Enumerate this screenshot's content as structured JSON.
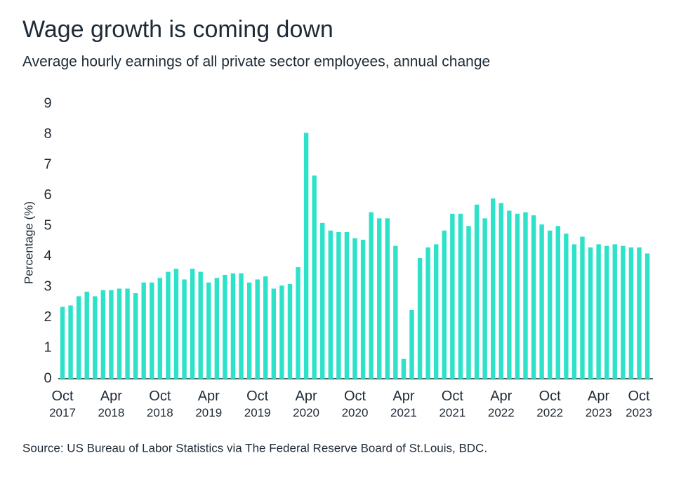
{
  "chart_data": {
    "type": "bar",
    "title": "Wage growth is coming down",
    "subtitle": "Average hourly earnings of all private sector employees, annual change",
    "y_label": "Percentage (%)",
    "source": "Source: US Bureau of Labor Statistics via The Federal Reserve Board of St.Louis, BDC.",
    "color": "#2ee2c9",
    "categories": [
      "Oct 2017",
      null,
      null,
      null,
      null,
      null,
      "Apr 2018",
      null,
      null,
      null,
      null,
      null,
      "Oct 2018",
      null,
      null,
      null,
      null,
      null,
      "Apr 2019",
      null,
      null,
      null,
      null,
      null,
      "Oct 2019",
      null,
      null,
      null,
      null,
      null,
      "Apr 2020",
      null,
      null,
      null,
      null,
      null,
      "Oct 2020",
      null,
      null,
      null,
      null,
      null,
      "Apr 2021",
      null,
      null,
      null,
      null,
      null,
      "Oct 2021",
      null,
      null,
      null,
      null,
      null,
      "Apr 2022",
      null,
      null,
      null,
      null,
      null,
      "Oct 2022",
      null,
      null,
      null,
      null,
      null,
      "Apr 2023",
      null,
      null,
      null,
      null,
      null,
      "Oct 2023"
    ],
    "values": [
      2.35,
      2.4,
      2.7,
      2.85,
      2.7,
      2.9,
      2.9,
      2.95,
      2.95,
      2.8,
      3.15,
      3.15,
      3.3,
      3.5,
      3.6,
      3.25,
      3.6,
      3.5,
      3.15,
      3.3,
      3.4,
      3.45,
      3.45,
      3.15,
      3.25,
      3.35,
      2.95,
      3.05,
      3.1,
      3.65,
      8.05,
      6.65,
      5.1,
      4.85,
      4.8,
      4.8,
      4.6,
      4.55,
      5.45,
      5.25,
      5.25,
      4.35,
      0.65,
      2.25,
      3.95,
      4.3,
      4.4,
      4.85,
      5.4,
      5.4,
      5.0,
      5.7,
      5.25,
      5.9,
      5.75,
      5.5,
      5.4,
      5.45,
      5.35,
      5.05,
      4.85,
      5.0,
      4.75,
      4.4,
      4.65,
      4.3,
      4.4,
      4.35,
      4.4,
      4.35,
      4.3,
      4.3,
      4.1
    ],
    "ylim": [
      0,
      9
    ],
    "yticks": [
      0,
      1,
      2,
      3,
      4,
      5,
      6,
      7,
      8,
      9
    ]
  }
}
